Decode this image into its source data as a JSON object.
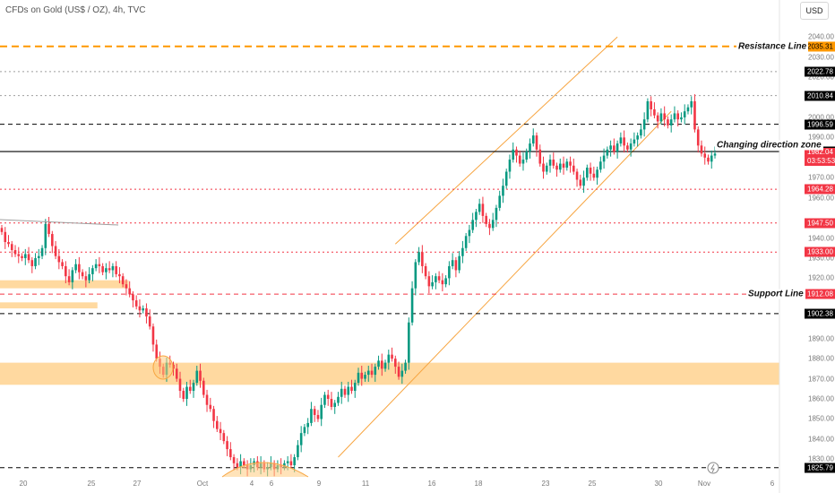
{
  "header": {
    "title": "CFDs on Gold (US$ / OZ), 4h, TVC"
  },
  "currency_button": {
    "label": "USD"
  },
  "colors": {
    "up": "#089981",
    "down": "#f23645",
    "zone": "#ffcc80",
    "channel": "#f7a541"
  },
  "chart_data": {
    "type": "candlestick",
    "title": "CFDs on Gold (US$ / OZ), 4h, TVC",
    "y_axis": {
      "range": [
        1823,
        2045
      ],
      "ticks": [
        2040,
        2030,
        2020,
        2000,
        1990,
        1970,
        1960,
        1940,
        1930,
        1920,
        1890,
        1880,
        1870,
        1860,
        1850,
        1840,
        1830
      ]
    },
    "x_axis": {
      "ticks": [
        "20",
        "25",
        "27",
        "Oct",
        "4",
        "6",
        "9",
        "11",
        "16",
        "18",
        "23",
        "25",
        "30",
        "Nov",
        "6"
      ]
    },
    "price_lines": [
      {
        "value": 2035.31,
        "label": "2035.31",
        "style": "dashed",
        "color": "#ff9800",
        "tag_color": "#ff9800",
        "annotation": "Resistance Line"
      },
      {
        "value": 2022.78,
        "label": "2022.78",
        "style": "dotted",
        "color": "#9e9e9e",
        "tag_color": "#000000"
      },
      {
        "value": 2010.84,
        "label": "2010.84",
        "style": "dotted",
        "color": "#9e9e9e",
        "tag_color": "#000000"
      },
      {
        "value": 1996.59,
        "label": "1996.59",
        "style": "dashed",
        "color": "#000000",
        "tag_color": "#000000"
      },
      {
        "value": 1983.0,
        "label": "1983.00",
        "style": "solid",
        "color": "#000000",
        "tag_color": "#000000",
        "annotation": "Changing direction zone"
      },
      {
        "value": 1964.28,
        "label": "1964.28",
        "style": "dotted",
        "color": "#f23645",
        "tag_color": "#f23645"
      },
      {
        "value": 1947.5,
        "label": "1947.50",
        "style": "dotted",
        "color": "#f23645",
        "tag_color": "#f23645"
      },
      {
        "value": 1933.0,
        "label": "1933.00",
        "style": "dotted",
        "color": "#f23645",
        "tag_color": "#f23645"
      },
      {
        "value": 1912.08,
        "label": "1912.08",
        "style": "dashed",
        "color": "#f23645",
        "tag_color": "#f23645",
        "annotation": "Support Line"
      },
      {
        "value": 1902.38,
        "label": "1902.38",
        "style": "dashed",
        "color": "#000000",
        "tag_color": "#000000"
      },
      {
        "value": 1825.79,
        "label": "1825.79",
        "style": "dashed",
        "color": "#000000",
        "tag_color": "#000000"
      }
    ],
    "current_price": {
      "value": 1982.04,
      "label": "1982.04",
      "countdown": "03:53:53"
    },
    "zones": [
      {
        "from": 1915,
        "to": 1919,
        "x_from": 0,
        "x_to": 0.165
      },
      {
        "from": 1905,
        "to": 1908,
        "x_from": 0,
        "x_to": 0.125
      },
      {
        "from": 1867,
        "to": 1878,
        "x_from": 0,
        "x_to": 1
      }
    ],
    "channel": {
      "upper": [
        [
          1937,
          1936
        ],
        [
          2030,
          2020
        ]
      ],
      "lower": [
        [
          1828,
          1833
        ],
        [
          2000,
          1985
        ]
      ]
    },
    "closes": [
      1943,
      1938,
      1937,
      1934,
      1932,
      1931,
      1930,
      1932,
      1929,
      1926,
      1930,
      1931,
      1935,
      1947,
      1942,
      1936,
      1931,
      1928,
      1926,
      1921,
      1918,
      1924,
      1927,
      1923,
      1921,
      1919,
      1922,
      1925,
      1927,
      1926,
      1923,
      1925,
      1924,
      1926,
      1922,
      1921,
      1917,
      1915,
      1912,
      1909,
      1906,
      1904,
      1905,
      1901,
      1896,
      1887,
      1880,
      1876,
      1872,
      1878,
      1877,
      1875,
      1870,
      1864,
      1860,
      1866,
      1864,
      1868,
      1874,
      1869,
      1862,
      1857,
      1855,
      1849,
      1845,
      1843,
      1839,
      1835,
      1831,
      1828,
      1826,
      1829,
      1827,
      1825,
      1827,
      1829,
      1826,
      1828,
      1825,
      1826,
      1828,
      1825,
      1827,
      1826,
      1828,
      1829,
      1827,
      1831,
      1837,
      1843,
      1846,
      1848,
      1855,
      1852,
      1850,
      1857,
      1862,
      1860,
      1856,
      1858,
      1861,
      1865,
      1862,
      1866,
      1864,
      1868,
      1873,
      1870,
      1872,
      1874,
      1872,
      1876,
      1879,
      1875,
      1878,
      1882,
      1880,
      1876,
      1871,
      1874,
      1878,
      1898,
      1915,
      1928,
      1933,
      1926,
      1921,
      1916,
      1918,
      1921,
      1919,
      1917,
      1920,
      1926,
      1929,
      1924,
      1931,
      1935,
      1941,
      1944,
      1949,
      1953,
      1957,
      1951,
      1947,
      1945,
      1949,
      1955,
      1961,
      1966,
      1973,
      1979,
      1984,
      1981,
      1977,
      1979,
      1983,
      1987,
      1991,
      1984,
      1977,
      1973,
      1976,
      1979,
      1976,
      1974,
      1977,
      1975,
      1978,
      1976,
      1973,
      1969,
      1966,
      1970,
      1975,
      1972,
      1970,
      1974,
      1978,
      1981,
      1984,
      1986,
      1983,
      1987,
      1990,
      1986,
      1984,
      1987,
      1989,
      1991,
      1994,
      1999,
      2008,
      2004,
      2001,
      1998,
      2002,
      1999,
      1996,
      1999,
      2002,
      1999,
      2000,
      2003,
      2005,
      2008,
      1994,
      1986,
      1982,
      1980,
      1978,
      1981,
      1982
    ]
  }
}
